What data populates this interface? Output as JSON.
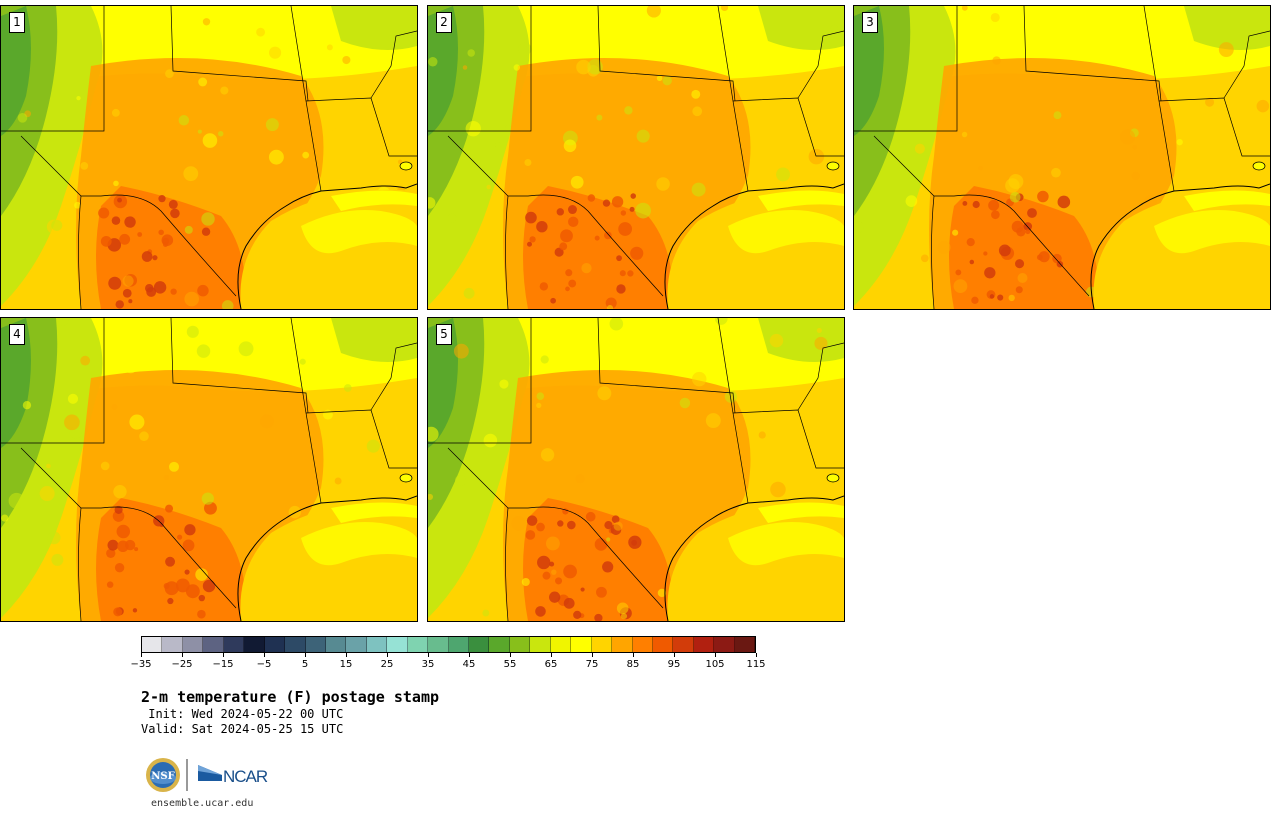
{
  "stamps": [
    {
      "label": "1"
    },
    {
      "label": "2"
    },
    {
      "label": "3"
    },
    {
      "label": "4"
    },
    {
      "label": "5"
    }
  ],
  "colorbar": {
    "colors": [
      "#e6e6ea",
      "#b9b9c8",
      "#8e90a6",
      "#5d6382",
      "#2f3a5c",
      "#111a33",
      "#1f3152",
      "#2d4a66",
      "#3d6378",
      "#578a92",
      "#6aa2a8",
      "#7ec2c0",
      "#96e2d5",
      "#7fd3b0",
      "#68bc8e",
      "#4ea66f",
      "#3a8f3e",
      "#5aa82b",
      "#88bf1b",
      "#c9e60e",
      "#f0f500",
      "#ffff00",
      "#ffd400",
      "#ffa500",
      "#ff7f00",
      "#f05a00",
      "#d23c0a",
      "#b12010",
      "#8c1a14",
      "#6a1812"
    ],
    "tick_labels": [
      "−35",
      "−25",
      "−15",
      "−5",
      "5",
      "15",
      "25",
      "35",
      "45",
      "55",
      "65",
      "75",
      "85",
      "95",
      "105",
      "115"
    ]
  },
  "title": "2-m temperature (F) postage stamp",
  "init": " Init: Wed 2024-05-22 00 UTC",
  "valid": "Valid: Sat 2024-05-25 15 UTC",
  "logo_text": "NCAR",
  "nsf_text": "NSF",
  "website": "ensemble.ucar.edu"
}
